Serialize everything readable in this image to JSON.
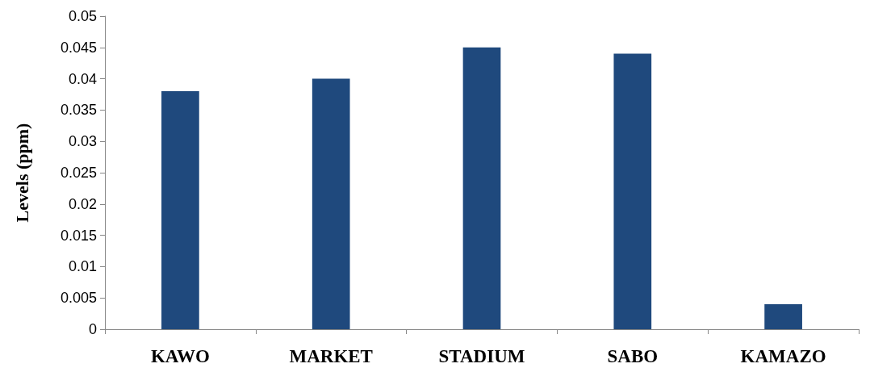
{
  "chart_data": {
    "type": "bar",
    "ylabel": "Levels (ppm)",
    "categories": [
      "KAWO",
      "MARKET",
      "STADIUM",
      "SABO",
      "KAMAZO"
    ],
    "values": [
      0.038,
      0.04,
      0.045,
      0.044,
      0.004
    ],
    "color": "#1f497d",
    "ylim": [
      0,
      0.05
    ],
    "yticks": [
      0,
      0.005,
      0.01,
      0.015,
      0.02,
      0.025,
      0.03,
      0.035,
      0.04,
      0.045,
      0.05
    ],
    "grid": false
  }
}
